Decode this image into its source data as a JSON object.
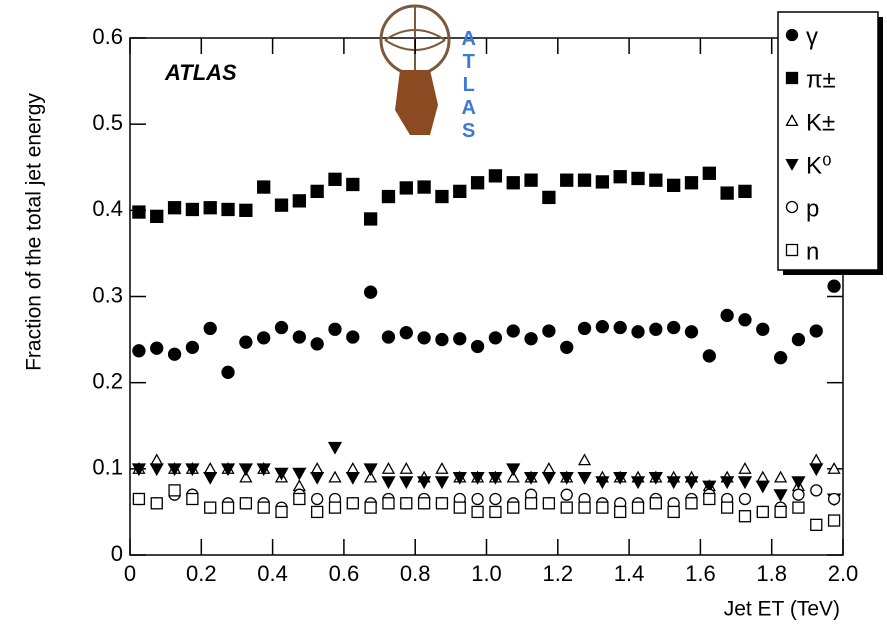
{
  "chart_data": {
    "type": "scatter",
    "x_label": "Jet ET (TeV)",
    "y_label": "Fraction of the total jet energy",
    "annotation": "ATLAS",
    "logo_text": "ATLAS",
    "xlim": [
      0,
      2.0
    ],
    "ylim": [
      0,
      0.6
    ],
    "xticks": [
      0,
      0.2,
      0.4,
      0.6,
      0.8,
      {
        "value": 1.0,
        "label": "1.0"
      },
      1.2,
      1.4,
      1.6,
      1.8,
      {
        "value": 2.0,
        "label": "2.0"
      }
    ],
    "yticks": [
      0,
      0.1,
      0.2,
      0.3,
      0.4,
      0.5,
      0.6
    ],
    "x": [
      0.025,
      0.075,
      0.125,
      0.175,
      0.225,
      0.275,
      0.325,
      0.375,
      0.425,
      0.475,
      0.525,
      0.575,
      0.625,
      0.675,
      0.725,
      0.775,
      0.825,
      0.875,
      0.925,
      0.975,
      1.025,
      1.075,
      1.125,
      1.175,
      1.225,
      1.275,
      1.325,
      1.375,
      1.425,
      1.475,
      1.525,
      1.575,
      1.625,
      1.675,
      1.725,
      1.775,
      1.825,
      1.875,
      1.925,
      1.975
    ],
    "legend_position": "upper right",
    "series": [
      {
        "name": "γ",
        "color": "#000000",
        "marker": "circle",
        "filled": true,
        "values": [
          0.237,
          0.24,
          0.233,
          0.241,
          0.263,
          0.212,
          0.247,
          0.252,
          0.264,
          0.253,
          0.245,
          0.262,
          0.253,
          0.305,
          0.253,
          0.258,
          0.252,
          0.25,
          0.251,
          0.242,
          0.252,
          0.26,
          0.251,
          0.26,
          0.241,
          0.263,
          0.265,
          0.264,
          0.259,
          0.262,
          0.264,
          0.259,
          0.231,
          0.278,
          0.273,
          0.262,
          0.229,
          0.25,
          0.26,
          0.312
        ]
      },
      {
        "name": "π±",
        "color": "#000000",
        "marker": "square",
        "filled": true,
        "values": [
          0.398,
          0.393,
          0.403,
          0.401,
          0.403,
          0.401,
          0.4,
          0.427,
          0.406,
          0.411,
          0.422,
          0.436,
          0.43,
          0.39,
          0.416,
          0.426,
          0.427,
          0.416,
          0.422,
          0.432,
          0.44,
          0.432,
          0.435,
          0.415,
          0.435,
          0.435,
          0.433,
          0.439,
          0.437,
          0.435,
          0.429,
          0.432,
          0.443,
          0.42,
          0.422,
          null,
          null,
          null,
          null,
          null
        ]
      },
      {
        "name": "K±",
        "color": "#000000",
        "marker": "triangle-up",
        "filled": false,
        "values": [
          0.1,
          0.11,
          0.1,
          0.1,
          0.1,
          0.1,
          0.09,
          0.1,
          0.09,
          0.08,
          0.1,
          0.09,
          0.1,
          0.09,
          0.1,
          0.1,
          0.09,
          0.1,
          0.09,
          0.09,
          0.09,
          0.09,
          0.09,
          0.1,
          0.09,
          0.11,
          0.09,
          0.09,
          0.09,
          0.09,
          0.09,
          0.09,
          0.08,
          0.09,
          0.1,
          0.09,
          0.09,
          0.08,
          0.11,
          0.1
        ]
      },
      {
        "name": "K⁰",
        "color": "#000000",
        "marker": "triangle-down",
        "filled": true,
        "values": [
          0.1,
          0.1,
          0.1,
          0.1,
          0.09,
          0.1,
          0.1,
          0.1,
          0.095,
          0.095,
          0.09,
          0.125,
          0.09,
          0.1,
          0.085,
          0.085,
          0.085,
          0.085,
          0.09,
          0.09,
          0.09,
          0.1,
          0.09,
          0.09,
          0.09,
          0.09,
          0.085,
          0.09,
          0.085,
          0.09,
          0.085,
          0.085,
          0.08,
          0.085,
          0.085,
          0.08,
          0.07,
          0.085,
          0.1,
          0.065
        ]
      },
      {
        "name": "p",
        "color": "#000000",
        "marker": "circle",
        "filled": false,
        "values": [
          0.065,
          0.06,
          0.07,
          0.07,
          0.055,
          0.06,
          0.06,
          0.06,
          0.055,
          0.07,
          0.065,
          0.065,
          0.06,
          0.06,
          0.065,
          0.06,
          0.065,
          0.06,
          0.065,
          0.065,
          0.065,
          0.06,
          0.07,
          0.06,
          0.07,
          0.065,
          0.06,
          0.06,
          0.06,
          0.065,
          0.06,
          0.065,
          0.07,
          0.065,
          0.065,
          0.05,
          0.055,
          0.07,
          0.075,
          0.065
        ]
      },
      {
        "name": "n",
        "color": "#000000",
        "marker": "square",
        "filled": false,
        "values": [
          0.065,
          0.06,
          0.075,
          0.065,
          0.055,
          0.055,
          0.06,
          0.055,
          0.05,
          0.065,
          0.05,
          0.055,
          0.06,
          0.055,
          0.06,
          0.06,
          0.06,
          0.06,
          0.055,
          0.05,
          0.05,
          0.055,
          0.06,
          0.06,
          0.055,
          0.055,
          0.055,
          0.05,
          0.055,
          0.06,
          0.05,
          0.06,
          0.065,
          0.055,
          0.045,
          0.05,
          0.05,
          0.055,
          0.035,
          0.04
        ]
      }
    ]
  }
}
